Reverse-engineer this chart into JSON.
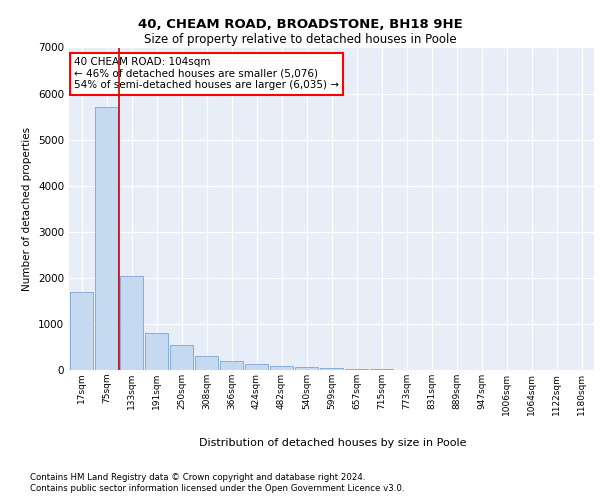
{
  "title1": "40, CHEAM ROAD, BROADSTONE, BH18 9HE",
  "title2": "Size of property relative to detached houses in Poole",
  "xlabel": "Distribution of detached houses by size in Poole",
  "ylabel": "Number of detached properties",
  "categories": [
    "17sqm",
    "75sqm",
    "133sqm",
    "191sqm",
    "250sqm",
    "308sqm",
    "366sqm",
    "424sqm",
    "482sqm",
    "540sqm",
    "599sqm",
    "657sqm",
    "715sqm",
    "773sqm",
    "831sqm",
    "889sqm",
    "947sqm",
    "1006sqm",
    "1064sqm",
    "1122sqm",
    "1180sqm"
  ],
  "values": [
    1700,
    5700,
    2050,
    800,
    550,
    300,
    200,
    120,
    90,
    60,
    50,
    30,
    20,
    8,
    5,
    3,
    2,
    1,
    1,
    1,
    0
  ],
  "bar_color": "#c5d9f1",
  "bar_edge_color": "#7aa6d4",
  "annotation_text": "40 CHEAM ROAD: 104sqm\n← 46% of detached houses are smaller (5,076)\n54% of semi-detached houses are larger (6,035) →",
  "annotation_box_color": "white",
  "annotation_box_edge": "red",
  "footer1": "Contains HM Land Registry data © Crown copyright and database right 2024.",
  "footer2": "Contains public sector information licensed under the Open Government Licence v3.0.",
  "ylim": [
    0,
    7000
  ],
  "yticks": [
    0,
    1000,
    2000,
    3000,
    4000,
    5000,
    6000,
    7000
  ],
  "bg_color": "#e8eef8",
  "grid_color": "white",
  "red_line_color": "#cc0000",
  "red_line_x": 1.5
}
